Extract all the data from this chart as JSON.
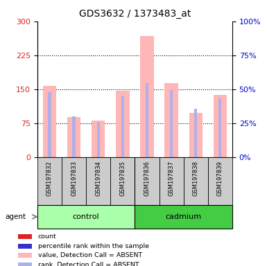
{
  "title": "GDS3632 / 1373483_at",
  "samples": [
    "GSM197832",
    "GSM197833",
    "GSM197834",
    "GSM197835",
    "GSM197836",
    "GSM197837",
    "GSM197838",
    "GSM197839"
  ],
  "values_absent": [
    157,
    88,
    80,
    147,
    268,
    163,
    97,
    137
  ],
  "ranks_absent_pct": [
    47.7,
    30.0,
    26.0,
    45.0,
    54.3,
    49.3,
    35.7,
    43.3
  ],
  "left_ylim": [
    0,
    300
  ],
  "right_ylim": [
    0,
    100
  ],
  "left_yticks": [
    0,
    75,
    150,
    225,
    300
  ],
  "right_yticks": [
    0,
    25,
    50,
    75,
    100
  ],
  "bar_color_absent": "#FFB6B6",
  "rank_color_absent": "#B0B0E8",
  "left_tick_color": "#DD2222",
  "right_tick_color": "#0000CC",
  "legend_items": [
    {
      "label": "count",
      "color": "#DD2222"
    },
    {
      "label": "percentile rank within the sample",
      "color": "#3333CC"
    },
    {
      "label": "value, Detection Call = ABSENT",
      "color": "#FFB6B6"
    },
    {
      "label": "rank, Detection Call = ABSENT",
      "color": "#B0B0E8"
    }
  ],
  "control_color": "#AAFFAA",
  "cadmium_color": "#44CC44"
}
